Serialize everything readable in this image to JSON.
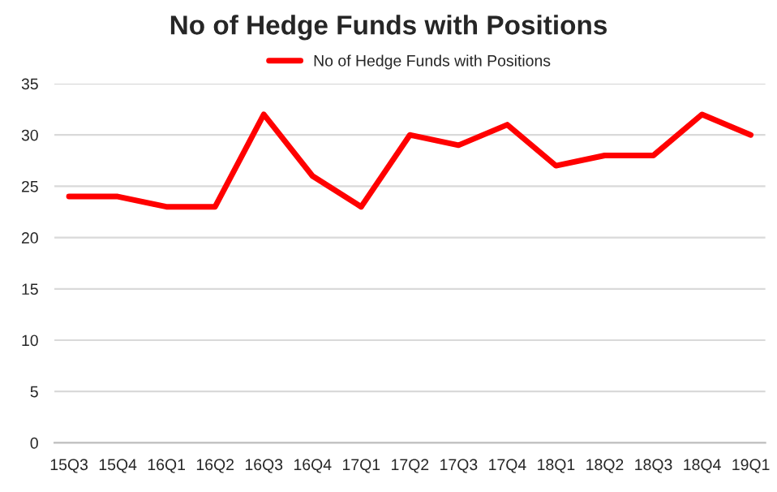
{
  "chart_data": {
    "type": "line",
    "title": "No of Hedge Funds with Positions",
    "categories": [
      "15Q3",
      "15Q4",
      "16Q1",
      "16Q2",
      "16Q3",
      "16Q4",
      "17Q1",
      "17Q2",
      "17Q3",
      "17Q4",
      "18Q1",
      "18Q2",
      "18Q3",
      "18Q4",
      "19Q1"
    ],
    "series": [
      {
        "name": "No of Hedge Funds with Positions",
        "color": "#ff0000",
        "values": [
          24,
          24,
          23,
          23,
          32,
          26,
          23,
          30,
          29,
          31,
          27,
          28,
          28,
          32,
          30
        ]
      }
    ],
    "ylim": [
      0,
      35
    ],
    "yticks": [
      0,
      5,
      10,
      15,
      20,
      25,
      30,
      35
    ],
    "grid": "y",
    "legend": "top",
    "marker": "none",
    "line_style": "solid"
  }
}
